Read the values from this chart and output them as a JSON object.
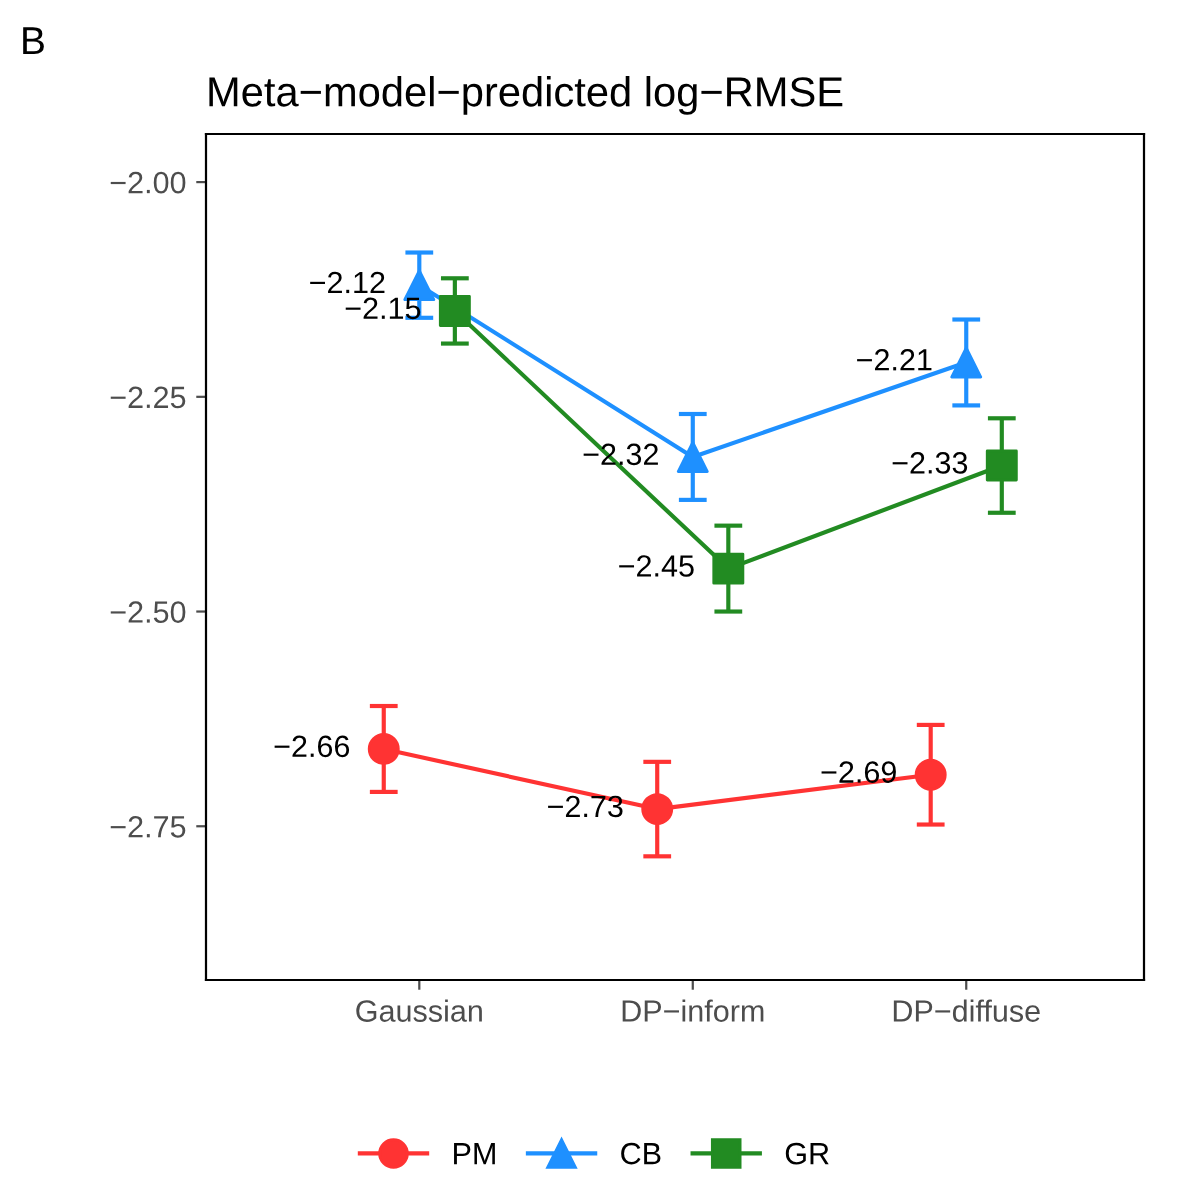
{
  "chart_data": {
    "type": "line",
    "title": "Meta−model−predicted log−RMSE",
    "annotations": [
      "B"
    ],
    "categories": [
      "Gaussian",
      "DP−inform",
      "DP−diffuse"
    ],
    "series": [
      {
        "name": "PM",
        "color": "#ff3333",
        "marker": "circle",
        "values": [
          -2.66,
          -2.73,
          -2.69
        ],
        "errors": [
          0.05,
          0.055,
          0.058
        ]
      },
      {
        "name": "CB",
        "color": "#1e90ff",
        "marker": "triangle",
        "values": [
          -2.12,
          -2.32,
          -2.21
        ],
        "errors": [
          0.038,
          0.05,
          0.05
        ]
      },
      {
        "name": "GR",
        "color": "#228b22",
        "marker": "square",
        "values": [
          -2.15,
          -2.45,
          -2.33
        ],
        "errors": [
          0.038,
          0.05,
          0.055
        ]
      }
    ],
    "ylim": [
      -2.929,
      -1.944
    ],
    "yticks": [
      {
        "value": -2.0,
        "label": "−2.00"
      },
      {
        "value": -2.25,
        "label": "−2.25"
      },
      {
        "value": -2.5,
        "label": "−2.50"
      },
      {
        "value": -2.75,
        "label": "−2.75"
      }
    ],
    "data_labels": true,
    "legend": "bottom",
    "grid": false
  }
}
